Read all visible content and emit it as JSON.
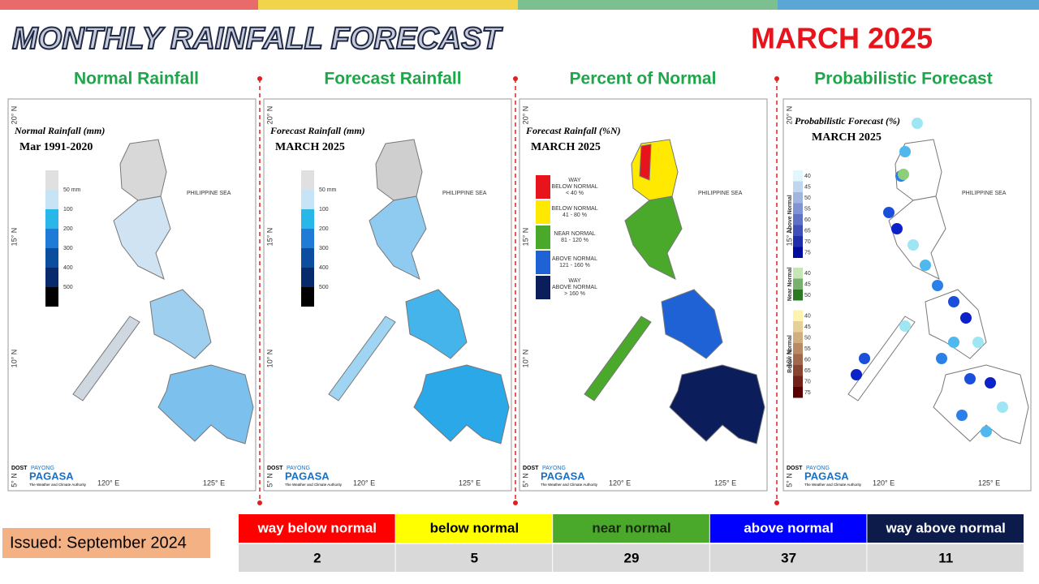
{
  "header": {
    "title": "MONTHLY RAINFALL FORECAST",
    "period": "MARCH 2025"
  },
  "panels": [
    {
      "heading": "Normal Rainfall",
      "map_title": "Normal Rainfall (mm)",
      "map_subtitle": "Mar 1991-2020",
      "legend": [
        "50 mm",
        "100",
        "200",
        "300",
        "400",
        "500"
      ]
    },
    {
      "heading": "Forecast Rainfall",
      "map_title": "Forecast Rainfall (mm)",
      "map_subtitle": "MARCH 2025",
      "legend": [
        "50 mm",
        "100",
        "200",
        "300",
        "400",
        "500"
      ]
    },
    {
      "heading": "Percent of Normal",
      "map_title": "Forecast Rainfall (%N)",
      "map_subtitle": "MARCH 2025",
      "legend": [
        [
          "WAY",
          "BELOW NORMAL",
          "< 40 %"
        ],
        [
          "BELOW NORMAL",
          "41 - 80 %"
        ],
        [
          "NEAR NORMAL",
          "81 - 120 %"
        ],
        [
          "ABOVE NORMAL",
          "121 - 160 %"
        ],
        [
          "WAY",
          "ABOVE NORMAL",
          "> 160 %"
        ]
      ]
    },
    {
      "heading": "Probabilistic Forecast",
      "map_title": "Probabilistic Forecast (%)",
      "map_subtitle": "MARCH 2025",
      "legend": [
        {
          "name": "Above Normal",
          "values": [
            40,
            45,
            50,
            55,
            60,
            65,
            70,
            75
          ]
        },
        {
          "name": "Near Normal",
          "values": [
            40,
            45,
            50
          ]
        },
        {
          "name": "Below Normal",
          "values": [
            40,
            45,
            50,
            55,
            60,
            65,
            70,
            75
          ]
        }
      ]
    }
  ],
  "map_labels": {
    "sea": "PHILIPPINE SEA",
    "lat": [
      "20° N",
      "15° N",
      "10° N",
      "5° N"
    ],
    "lon": [
      "120° E",
      "125° E"
    ],
    "logo_agency": "DOST",
    "logo_brand": "PAYONG",
    "logo": "PAGASA",
    "logo_tag": "The Weather and Climate Authority"
  },
  "summary": {
    "categories": [
      "way below normal",
      "below normal",
      "near normal",
      "above normal",
      "way above normal"
    ],
    "counts": [
      2,
      5,
      29,
      37,
      11
    ]
  },
  "issued": "Issued: September 2024"
}
